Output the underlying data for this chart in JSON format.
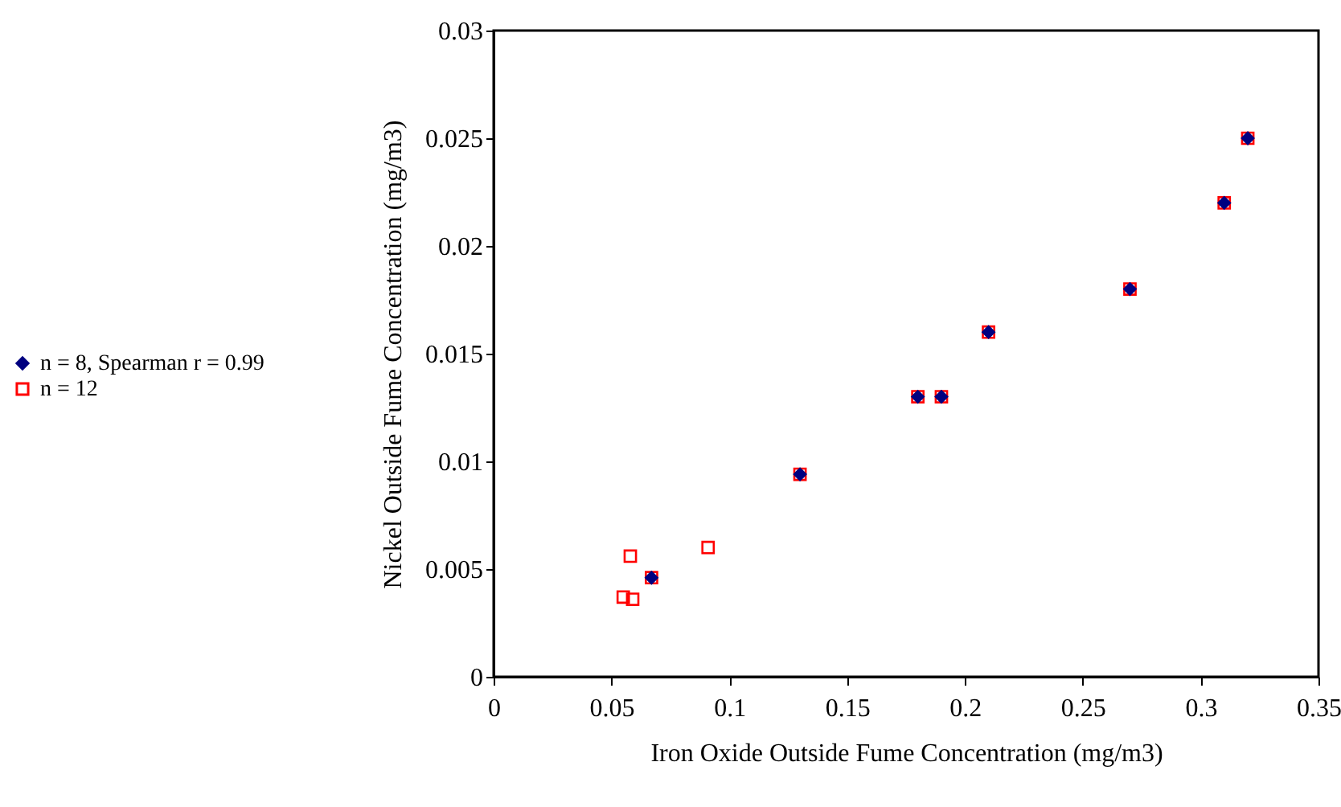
{
  "chart_data": {
    "type": "scatter",
    "xlabel": "Iron Oxide Outside Fume Concentration (mg/m3)",
    "ylabel": "Nickel Outside Fume Concentration (mg/m3)",
    "xlim": [
      0,
      0.35
    ],
    "xticks": [
      0,
      0.05,
      0.1,
      0.15,
      0.2,
      0.25,
      0.3,
      0.35
    ],
    "ylim": [
      0,
      0.03
    ],
    "yticks": [
      0,
      0.005,
      0.01,
      0.015,
      0.02,
      0.025,
      0.03
    ],
    "grid": false,
    "legend": "left",
    "series": [
      {
        "name": "n = 8, Spearman r = 0.99",
        "color": "#000080",
        "marker": "diamond",
        "x": [
          0.067,
          0.13,
          0.18,
          0.19,
          0.21,
          0.27,
          0.31,
          0.32
        ],
        "values": [
          0.0046,
          0.0094,
          0.013,
          0.013,
          0.016,
          0.018,
          0.022,
          0.025
        ]
      },
      {
        "name": "n = 12",
        "color": "#ff0000",
        "marker": "square",
        "x": [
          0.055,
          0.059,
          0.058,
          0.091,
          0.067,
          0.13,
          0.18,
          0.19,
          0.21,
          0.27,
          0.31,
          0.32
        ],
        "values": [
          0.0037,
          0.0036,
          0.0056,
          0.006,
          0.0046,
          0.0094,
          0.013,
          0.013,
          0.016,
          0.018,
          0.022,
          0.025
        ]
      }
    ]
  }
}
